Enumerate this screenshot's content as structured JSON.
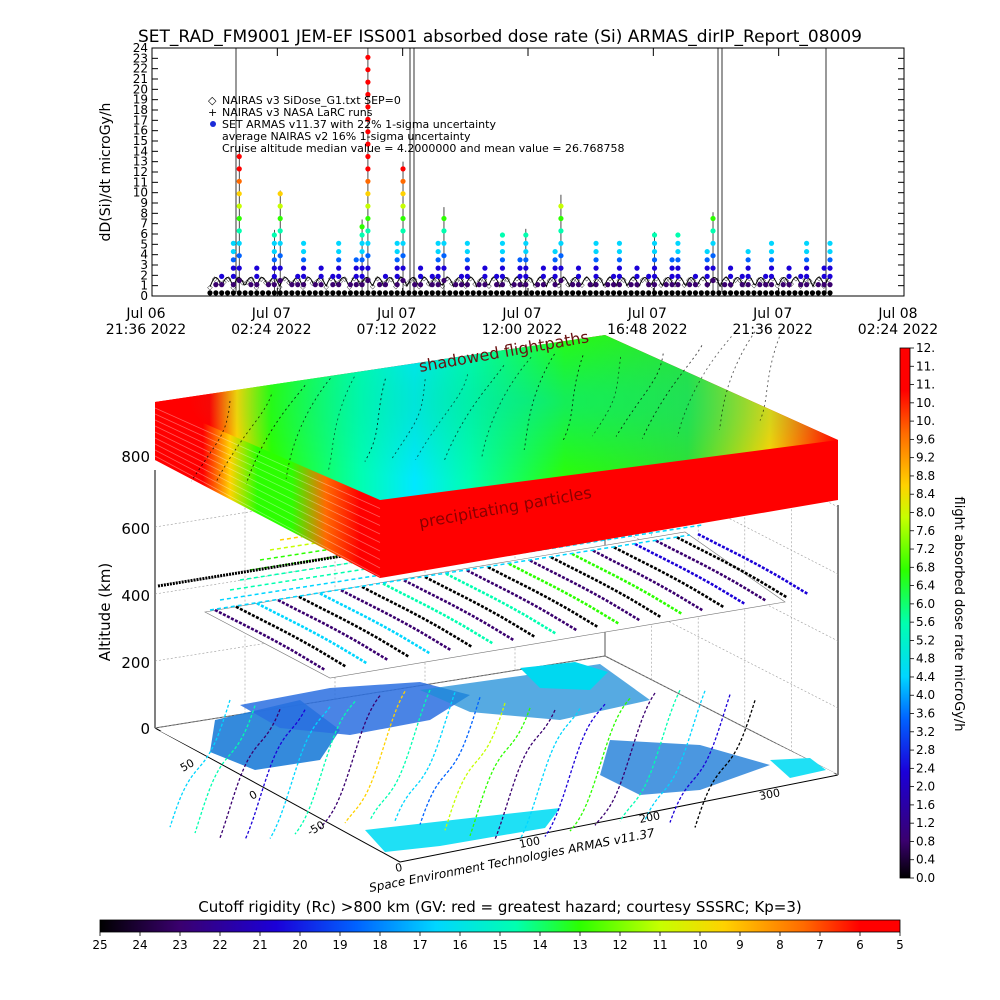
{
  "title": "SET_RAD_FM9001  JEM-EF ISS001 absorbed dose rate (Si) ARMAS_dirIP_Report_08009",
  "chart_data": [
    {
      "type": "scatter",
      "ylabel": "dD(Si)/dt microGy/h",
      "ylim": [
        0,
        24
      ],
      "yticks": [
        "0",
        "1",
        "2",
        "3",
        "4",
        "5",
        "6",
        "7",
        "8",
        "9",
        "10",
        "11",
        "12",
        "13",
        "14",
        "15",
        "16",
        "17",
        "18",
        "19",
        "20",
        "21",
        "22",
        "23",
        "24"
      ],
      "xticks": [
        {
          "date": "Jul 06",
          "time": "21:36 2022"
        },
        {
          "date": "Jul 07",
          "time": "02:24 2022"
        },
        {
          "date": "Jul 07",
          "time": "07:12 2022"
        },
        {
          "date": "Jul 07",
          "time": "12:00 2022"
        },
        {
          "date": "Jul 07",
          "time": "16:48 2022"
        },
        {
          "date": "Jul 07",
          "time": "21:36 2022"
        },
        {
          "date": "Jul 08",
          "time": "02:24 2022"
        }
      ],
      "legend": [
        "NAIRAS v3 SiDose_G1.txt SEP=0",
        "NAIRAS v3 NASA LaRC runs",
        "SET ARMAS v11.37 with 22% 1-sigma uncertainty",
        "average NAIRAS v2 16% 1-sigma uncertainty",
        "Cruise altitude median value = 4.2000000 and mean value = 26.768758"
      ],
      "series": [
        {
          "name": "NAIRAS v3 SiDose_G1.txt SEP=0",
          "marker": "diamond"
        },
        {
          "name": "NAIRAS v3 NASA LaRC runs",
          "marker": "plus"
        },
        {
          "name": "SET ARMAS v11.37 with 22% 1-sigma uncertainty",
          "marker": "dot",
          "values": [
            0.3,
            1.3,
            2.6,
            0.4,
            5.2,
            14.5,
            0.6,
            1.5,
            3.2,
            0.5,
            1.8,
            6.4,
            10.2,
            0.4,
            1.2,
            2.5,
            5.6,
            0.3,
            1.4,
            3.1,
            0.5,
            2.2,
            5.8,
            0.4,
            1.6,
            3.9,
            7.4,
            24,
            0.3,
            1.3,
            2.6,
            0.5,
            5.1,
            13,
            0.4,
            1.5,
            3.3,
            0.6,
            1.9,
            5.7,
            8.6,
            0.4,
            1.1,
            2.4,
            5.8,
            0.3,
            1.4,
            3.2,
            0.5,
            2.1,
            6.0,
            0.4,
            1.7,
            3.8,
            6.5,
            0.3,
            1.3,
            2.7,
            0.5,
            4.8,
            9.8,
            0.4,
            1.5,
            3.2,
            0.6,
            1.8,
            5.4,
            0.3,
            1.1,
            2.5,
            5.6,
            0.4,
            1.4,
            3.1,
            0.5,
            2.3,
            6.2,
            0.4,
            1.6,
            3.6,
            5.9,
            0.3,
            1.2,
            2.6,
            0.5,
            4.7,
            8.1,
            0.4,
            1.5,
            3.3,
            0.6,
            1.9,
            4.9,
            0.3,
            1.1,
            2.4,
            5.8,
            0.4,
            1.4,
            3.2,
            0.5,
            2.0,
            5.6,
            0.3,
            1.3,
            3.0,
            5.1
          ]
        }
      ]
    },
    {
      "type": "heatmap",
      "ylabel": "Altitude (km)",
      "zticks": [
        "0",
        "200",
        "400",
        "600",
        "800"
      ],
      "annotations": [
        "shadowed flightpaths",
        "precipitating particles"
      ],
      "lon_ticks": [
        "0",
        "100",
        "200",
        "300"
      ],
      "lat_ticks": [
        "-50",
        "0",
        "50"
      ],
      "credit": "Space Environment Technologies ARMAS v11.37"
    }
  ],
  "colorbar_right": {
    "label": "flight absorbed dose rate microGy/h",
    "ticks": [
      "0.0",
      "0.4",
      "0.8",
      "1.2",
      "1.6",
      "2.0",
      "2.4",
      "2.8",
      "3.2",
      "3.6",
      "4.0",
      "4.4",
      "4.8",
      "5.2",
      "5.6",
      "6.0",
      "6.4",
      "6.8",
      "7.2",
      "7.6",
      "8.0",
      "8.4",
      "8.8",
      "9.2",
      "9.6",
      "10.",
      "10.",
      "11.",
      "11.",
      "12."
    ]
  },
  "colorbar_bottom": {
    "title": "Cutoff rigidity (Rc) >800 km (GV: red = greatest hazard; courtesy SSSRC; Kp=3)",
    "ticks": [
      "25",
      "24",
      "23",
      "22",
      "21",
      "20",
      "19",
      "18",
      "17",
      "16",
      "15",
      "14",
      "13",
      "12",
      "11",
      "10",
      "9",
      "8",
      "7",
      "6",
      "5"
    ]
  },
  "colors": {
    "rainbow": [
      "#000000",
      "#3a006f",
      "#1b00d8",
      "#0062ff",
      "#00d6ff",
      "#00ffb0",
      "#2cff00",
      "#c6ff00",
      "#ffd200",
      "#ff6a00",
      "#ff0000"
    ]
  }
}
